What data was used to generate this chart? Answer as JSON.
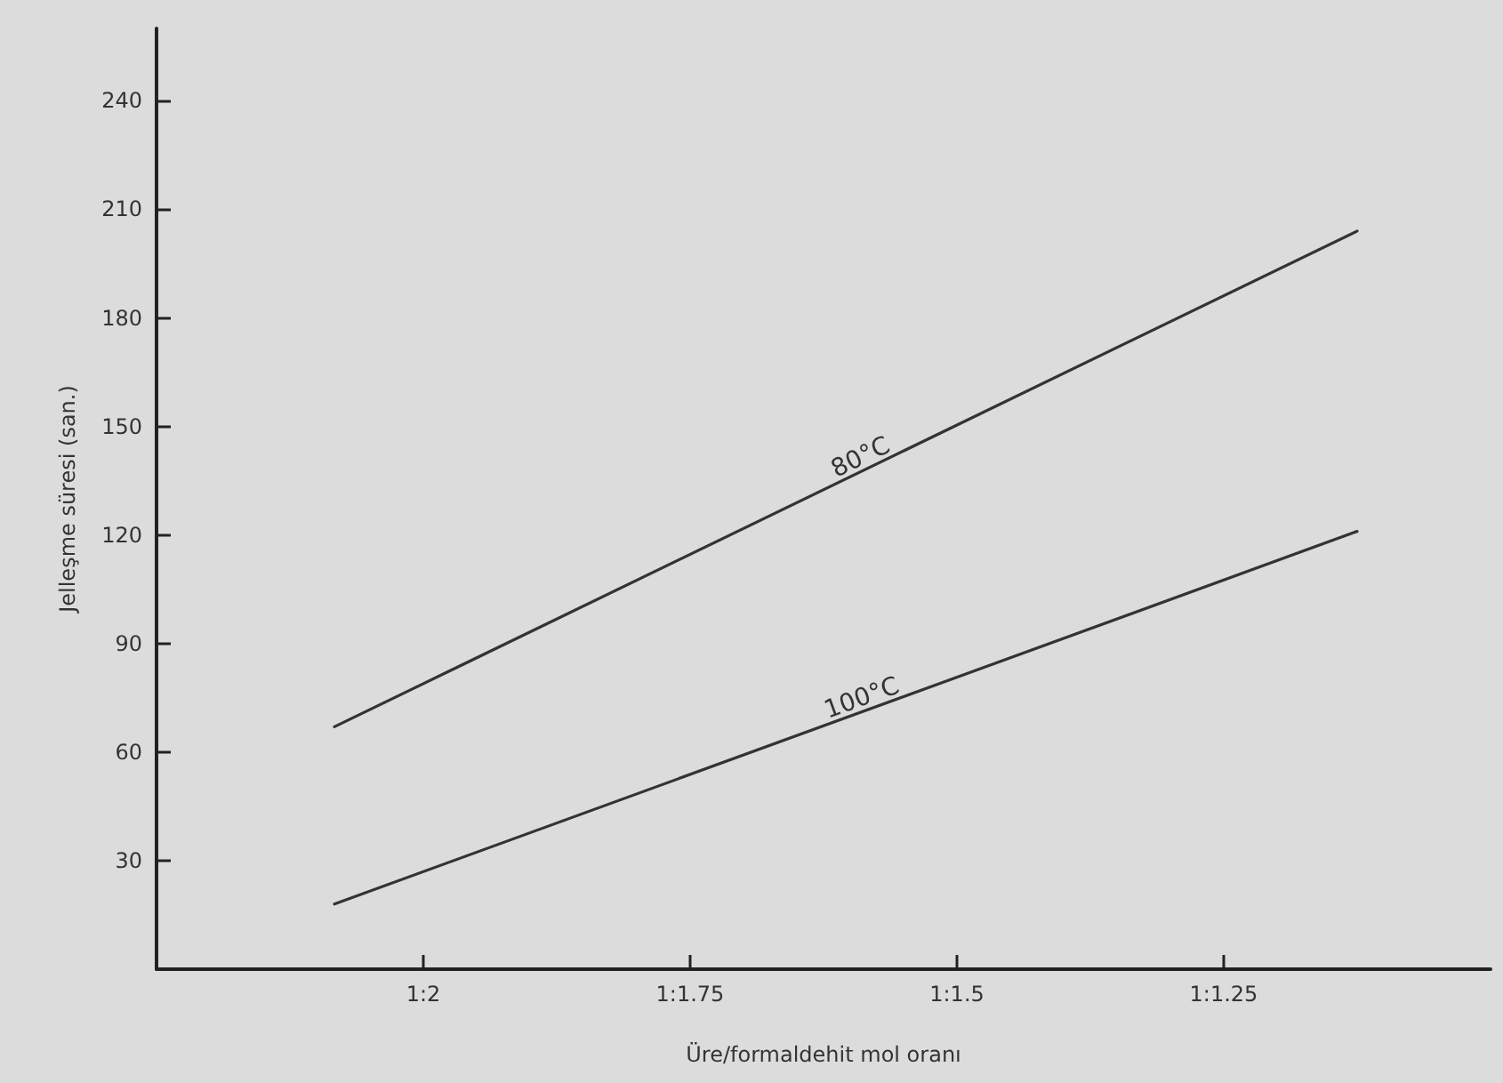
{
  "chart_data": {
    "type": "line",
    "xlabel": "Üre/formaldehit mol oranı",
    "ylabel": "Jelleşme süresi (san.)",
    "categories": [
      null,
      null,
      null,
      null,
      null,
      null,
      "1:2",
      null,
      null,
      null,
      null,
      null,
      "1:1.75",
      null,
      null,
      null,
      null,
      null,
      "1:1.5",
      null,
      null,
      null,
      null,
      null,
      "1:1.25",
      null,
      null,
      null,
      null,
      null,
      null
    ],
    "ylim": [
      0,
      260
    ],
    "yticks": [
      30,
      60,
      90,
      120,
      150,
      180,
      210,
      240
    ],
    "grid": false,
    "legend": false,
    "marker": "none",
    "line_style": "solid",
    "series": [
      {
        "name": "80°C",
        "color": "#333333",
        "values": [
          null,
          null,
          null,
          null,
          67,
          null,
          null,
          null,
          null,
          null,
          null,
          null,
          null,
          null,
          null,
          null,
          null,
          null,
          null,
          null,
          null,
          null,
          null,
          null,
          null,
          null,
          null,
          204,
          null,
          null,
          null
        ]
      },
      {
        "name": "100°C",
        "color": "#333333",
        "values": [
          null,
          null,
          null,
          null,
          18,
          null,
          null,
          null,
          null,
          null,
          null,
          null,
          null,
          null,
          null,
          null,
          null,
          null,
          null,
          null,
          null,
          null,
          null,
          null,
          null,
          null,
          null,
          121,
          null,
          null,
          null
        ]
      }
    ]
  }
}
